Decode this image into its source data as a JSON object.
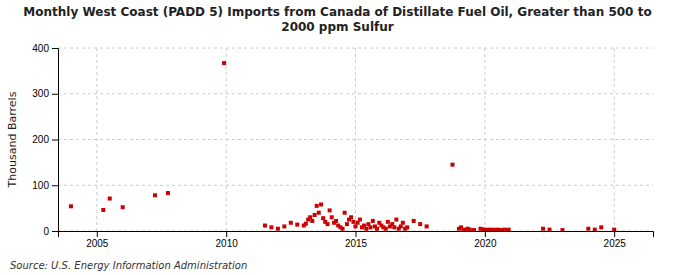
{
  "chart_data": {
    "type": "scatter",
    "title": "Monthly West Coast (PADD 5) Imports from Canada of Distillate Fuel Oil, Greater than 500 to\n2000 ppm Sulfur",
    "ylabel": "Thousand Barrels",
    "annotations": [
      "Source: U.S. Energy Information Administration"
    ],
    "color": "#cc0000",
    "marker": "square",
    "grid": true,
    "xlim": [
      2003.5,
      2026.5
    ],
    "xticks": [
      2005,
      2010,
      2015,
      2020,
      2025
    ],
    "ylim": [
      0,
      400
    ],
    "yticks": [
      0,
      100,
      200,
      300,
      400
    ],
    "x": [
      2004.0,
      2005.25,
      2005.5,
      2006.0,
      2007.25,
      2007.75,
      2009.92,
      2011.5,
      2011.75,
      2012.0,
      2012.25,
      2012.5,
      2012.75,
      2013.0,
      2013.08,
      2013.17,
      2013.25,
      2013.33,
      2013.42,
      2013.5,
      2013.58,
      2013.67,
      2013.75,
      2013.83,
      2013.92,
      2014.0,
      2014.08,
      2014.17,
      2014.25,
      2014.33,
      2014.42,
      2014.5,
      2014.58,
      2014.67,
      2014.75,
      2014.83,
      2014.92,
      2015.0,
      2015.08,
      2015.17,
      2015.25,
      2015.33,
      2015.42,
      2015.5,
      2015.58,
      2015.67,
      2015.75,
      2015.83,
      2015.92,
      2016.0,
      2016.08,
      2016.17,
      2016.25,
      2016.33,
      2016.42,
      2016.5,
      2016.58,
      2016.67,
      2016.75,
      2016.83,
      2016.92,
      2017.0,
      2017.25,
      2017.5,
      2017.75,
      2018.75,
      2019.0,
      2019.08,
      2019.17,
      2019.25,
      2019.33,
      2019.42,
      2019.58,
      2019.83,
      2019.92,
      2020.0,
      2020.08,
      2020.17,
      2020.25,
      2020.33,
      2020.42,
      2020.5,
      2020.58,
      2020.67,
      2020.75,
      2020.83,
      2020.92,
      2022.25,
      2022.5,
      2023.0,
      2024.0,
      2024.25,
      2024.5,
      2025.0
    ],
    "values": [
      54,
      46,
      71,
      52,
      78,
      83,
      367,
      12,
      8,
      5,
      10,
      18,
      14,
      12,
      16,
      25,
      30,
      22,
      35,
      55,
      40,
      58,
      28,
      20,
      15,
      45,
      30,
      18,
      22,
      12,
      8,
      5,
      40,
      15,
      25,
      30,
      20,
      10,
      18,
      25,
      8,
      12,
      5,
      15,
      8,
      22,
      10,
      5,
      18,
      12,
      8,
      5,
      20,
      10,
      15,
      8,
      25,
      5,
      10,
      18,
      5,
      8,
      22,
      15,
      10,
      145,
      5,
      8,
      3,
      2,
      5,
      3,
      2,
      5,
      3,
      3,
      2,
      3,
      2,
      3,
      2,
      3,
      2,
      2,
      3,
      2,
      3,
      5,
      3,
      2,
      5,
      3,
      8,
      3
    ]
  }
}
